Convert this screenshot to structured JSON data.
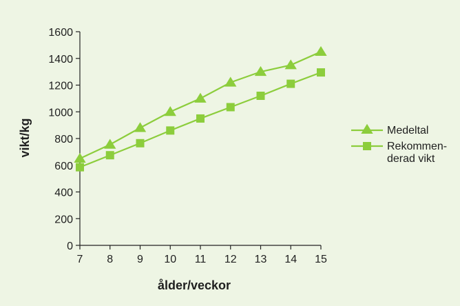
{
  "chart_data": {
    "type": "line",
    "xlabel": "ålder/veckor",
    "ylabel": "vikt/kg",
    "x": [
      7,
      8,
      9,
      10,
      11,
      12,
      13,
      14,
      15
    ],
    "xlim": [
      7,
      15
    ],
    "ylim": [
      0,
      1600
    ],
    "yticks": [
      0,
      200,
      400,
      600,
      800,
      1000,
      1200,
      1400,
      1600
    ],
    "grid": false,
    "legend_position": "right",
    "series": [
      {
        "name": "Medeltal",
        "marker": "triangle",
        "color": "#8ccd3c",
        "values": [
          650,
          755,
          880,
          1000,
          1100,
          1220,
          1300,
          1350,
          1450
        ]
      },
      {
        "name": "Rekommenderad vikt",
        "legend_lines": [
          "Rekommen-",
          "derad vikt"
        ],
        "marker": "square",
        "color": "#8ccd3c",
        "values": [
          585,
          675,
          765,
          860,
          950,
          1035,
          1120,
          1210,
          1295
        ]
      }
    ]
  }
}
